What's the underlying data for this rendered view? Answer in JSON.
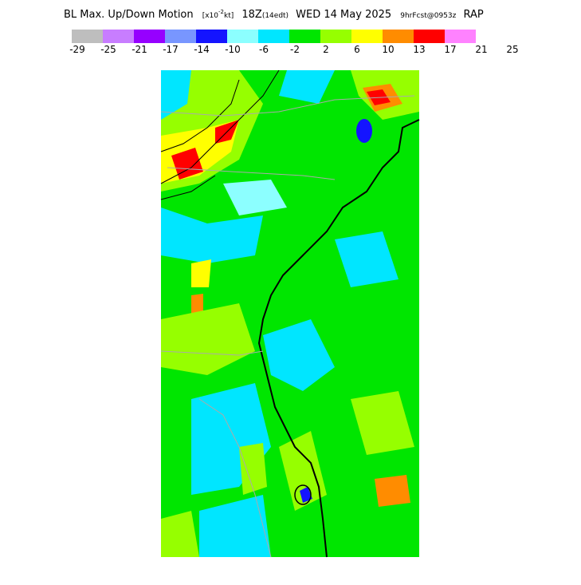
{
  "header": {
    "title": "BL Max. Up/Down Motion",
    "unit_prefix": "[x10",
    "unit_exp": "-2",
    "unit_suffix": "kt]",
    "time": "18Z",
    "local": "(14edt)",
    "date": "WED 14 May 2025",
    "forecast": "9hrFcst@0953z",
    "model": "RAP"
  },
  "legend": {
    "colors": [
      "#bebebe",
      "#c87dff",
      "#9600ff",
      "#7896ff",
      "#1414ff",
      "#8cffff",
      "#00e6ff",
      "#00e600",
      "#96ff00",
      "#ffff00",
      "#ff8c00",
      "#ff0000",
      "#ff82ff"
    ],
    "labels": [
      -29,
      -25,
      -21,
      -17,
      -14,
      -10,
      -6,
      -2,
      2,
      6,
      10,
      13,
      17,
      21,
      25
    ]
  }
}
